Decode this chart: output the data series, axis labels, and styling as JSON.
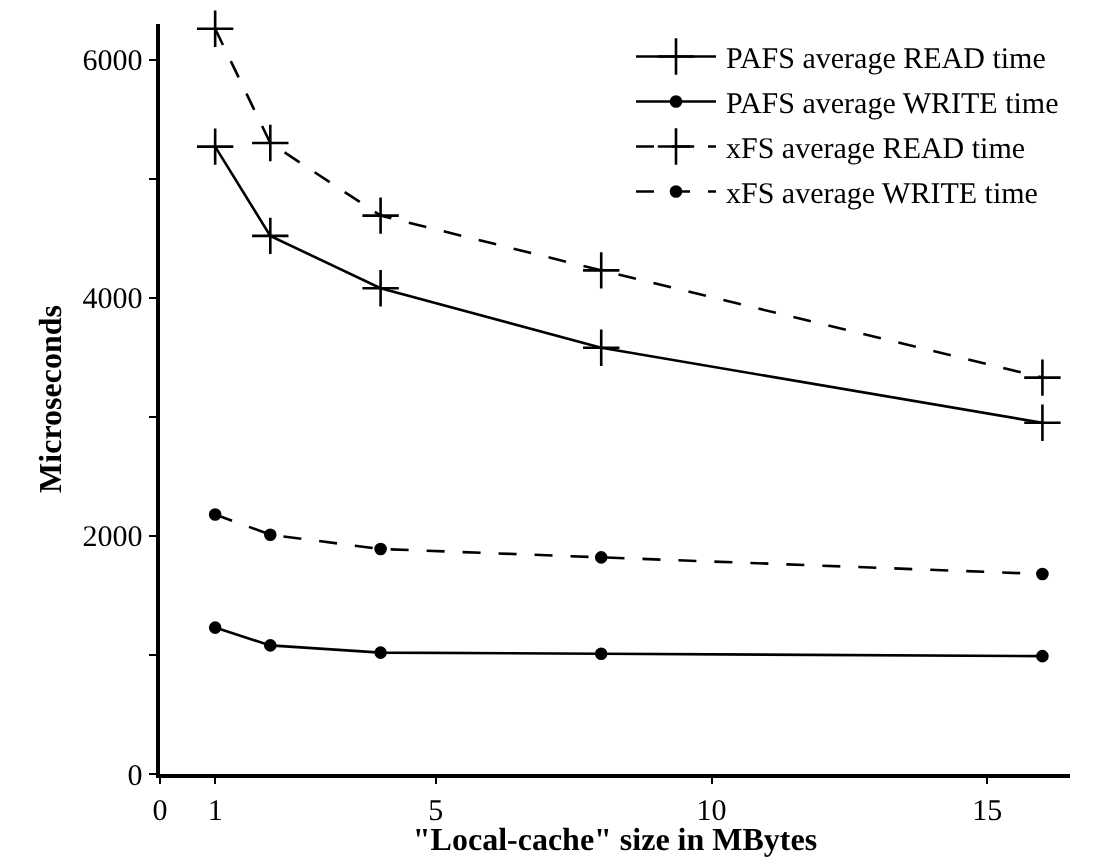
{
  "chart_data": {
    "type": "line",
    "xlabel": "\"Local-cache\" size in MBytes",
    "ylabel": "Microseconds",
    "x": [
      1,
      2,
      4,
      8,
      16
    ],
    "series": [
      {
        "name": "PAFS average READ time",
        "color": "#000000",
        "marker": "cross",
        "line_style": "solid",
        "values": [
          5270,
          4520,
          4080,
          3580,
          2950
        ]
      },
      {
        "name": "PAFS average WRITE time",
        "color": "#000000",
        "marker": "circle",
        "line_style": "solid",
        "values": [
          1230,
          1080,
          1020,
          1010,
          990
        ]
      },
      {
        "name": "xFS average READ time",
        "color": "#000000",
        "marker": "cross",
        "line_style": "dashed",
        "values": [
          6260,
          5300,
          4690,
          4230,
          3330
        ]
      },
      {
        "name": "xFS average WRITE time",
        "color": "#000000",
        "marker": "circle",
        "line_style": "dashed",
        "values": [
          2180,
          2010,
          1890,
          1820,
          1680
        ]
      }
    ],
    "xlim": [
      0,
      16.5
    ],
    "xticks": [
      0,
      1,
      5,
      10,
      15
    ],
    "ylim": [
      0,
      6300
    ],
    "yticks": [
      0,
      {
        "value": 1000,
        "label": null
      },
      2000,
      {
        "value": 3000,
        "label": null
      },
      4000,
      {
        "value": 5000,
        "label": null
      },
      6000
    ],
    "grid": false,
    "legend": "top right"
  }
}
